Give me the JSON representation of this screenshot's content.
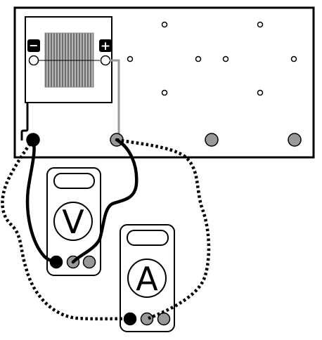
{
  "panel": {
    "terminals": {
      "negative": "−",
      "positive": "+"
    }
  },
  "voltmeter": {
    "symbol": "V"
  },
  "ammeter": {
    "symbol": "A"
  },
  "colors": {
    "stroke": "#000000",
    "background": "#ffffff",
    "terminal_gray": "#999999",
    "cell_gray": "#a0a0a0",
    "lead_gray": "#9a9a9a"
  }
}
